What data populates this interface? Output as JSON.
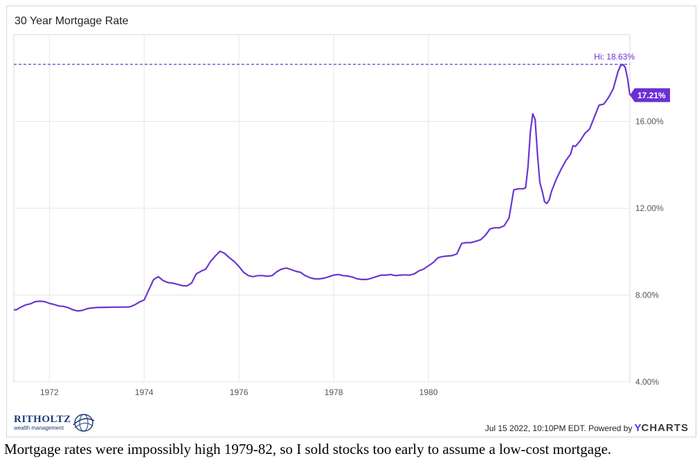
{
  "chart_title": "30 Year Mortgage Rate",
  "footer": {
    "timestamp": "Jul 15 2022, 10:10PM EDT. Powered by",
    "brand_y": "Y",
    "brand_rest": "CHARTS"
  },
  "logo": {
    "name": "RITHOLTZ",
    "sub": "wealth management"
  },
  "caption": "Mortgage rates were impossibly high 1979-82, so I sold stocks too early to assume a low-cost mortgage.",
  "colors": {
    "line": "#6a35cf",
    "accent": "#6b2fd6",
    "grid": "#e6e6e6"
  },
  "chart_data": {
    "type": "line",
    "title": "30 Year Mortgage Rate",
    "series": [
      {
        "name": "30 Year Mortgage Rate",
        "points": [
          [
            1971.25,
            7.33
          ],
          [
            1971.3,
            7.32
          ],
          [
            1971.4,
            7.45
          ],
          [
            1971.5,
            7.55
          ],
          [
            1971.6,
            7.6
          ],
          [
            1971.7,
            7.7
          ],
          [
            1971.8,
            7.72
          ],
          [
            1971.9,
            7.7
          ],
          [
            1972.0,
            7.62
          ],
          [
            1972.1,
            7.57
          ],
          [
            1972.2,
            7.5
          ],
          [
            1972.3,
            7.48
          ],
          [
            1972.4,
            7.42
          ],
          [
            1972.5,
            7.32
          ],
          [
            1972.6,
            7.27
          ],
          [
            1972.7,
            7.3
          ],
          [
            1972.8,
            7.38
          ],
          [
            1972.9,
            7.41
          ],
          [
            1973.0,
            7.43
          ],
          [
            1973.2,
            7.44
          ],
          [
            1973.4,
            7.45
          ],
          [
            1973.6,
            7.45
          ],
          [
            1973.7,
            7.46
          ],
          [
            1973.8,
            7.55
          ],
          [
            1973.9,
            7.68
          ],
          [
            1974.0,
            7.78
          ],
          [
            1974.1,
            8.25
          ],
          [
            1974.2,
            8.72
          ],
          [
            1974.3,
            8.85
          ],
          [
            1974.4,
            8.67
          ],
          [
            1974.5,
            8.58
          ],
          [
            1974.6,
            8.55
          ],
          [
            1974.7,
            8.5
          ],
          [
            1974.8,
            8.44
          ],
          [
            1974.9,
            8.42
          ],
          [
            1975.0,
            8.55
          ],
          [
            1975.1,
            8.98
          ],
          [
            1975.2,
            9.1
          ],
          [
            1975.3,
            9.2
          ],
          [
            1975.4,
            9.55
          ],
          [
            1975.5,
            9.8
          ],
          [
            1975.6,
            10.02
          ],
          [
            1975.7,
            9.92
          ],
          [
            1975.8,
            9.72
          ],
          [
            1975.9,
            9.55
          ],
          [
            1976.0,
            9.32
          ],
          [
            1976.1,
            9.05
          ],
          [
            1976.2,
            8.9
          ],
          [
            1976.3,
            8.85
          ],
          [
            1976.4,
            8.9
          ],
          [
            1976.5,
            8.9
          ],
          [
            1976.6,
            8.87
          ],
          [
            1976.7,
            8.9
          ],
          [
            1976.8,
            9.08
          ],
          [
            1976.9,
            9.2
          ],
          [
            1977.0,
            9.25
          ],
          [
            1977.1,
            9.18
          ],
          [
            1977.2,
            9.1
          ],
          [
            1977.3,
            9.05
          ],
          [
            1977.4,
            8.9
          ],
          [
            1977.5,
            8.8
          ],
          [
            1977.6,
            8.75
          ],
          [
            1977.7,
            8.75
          ],
          [
            1977.8,
            8.78
          ],
          [
            1977.9,
            8.85
          ],
          [
            1978.0,
            8.92
          ],
          [
            1978.1,
            8.95
          ],
          [
            1978.2,
            8.9
          ],
          [
            1978.3,
            8.88
          ],
          [
            1978.4,
            8.83
          ],
          [
            1978.5,
            8.75
          ],
          [
            1978.6,
            8.72
          ],
          [
            1978.7,
            8.72
          ],
          [
            1978.8,
            8.78
          ],
          [
            1978.9,
            8.85
          ],
          [
            1979.0,
            8.92
          ],
          [
            1979.1,
            8.92
          ],
          [
            1979.2,
            8.95
          ],
          [
            1979.3,
            8.9
          ],
          [
            1979.4,
            8.92
          ],
          [
            1979.5,
            8.93
          ],
          [
            1979.6,
            8.92
          ],
          [
            1979.7,
            8.98
          ],
          [
            1979.8,
            9.12
          ],
          [
            1979.9,
            9.2
          ],
          [
            1980.0,
            9.35
          ],
          [
            1980.1,
            9.5
          ],
          [
            1980.2,
            9.72
          ],
          [
            1980.3,
            9.78
          ],
          [
            1980.4,
            9.8
          ],
          [
            1980.5,
            9.82
          ],
          [
            1980.6,
            9.9
          ],
          [
            1980.7,
            10.38
          ],
          [
            1980.8,
            10.42
          ],
          [
            1980.9,
            10.42
          ],
          [
            1981.0,
            10.48
          ],
          [
            1981.1,
            10.55
          ],
          [
            1981.2,
            10.75
          ],
          [
            1981.3,
            11.05
          ],
          [
            1981.4,
            11.1
          ],
          [
            1981.5,
            11.1
          ],
          [
            1981.6,
            11.2
          ],
          [
            1981.7,
            11.55
          ],
          [
            1981.8,
            12.85
          ],
          [
            1981.9,
            12.9
          ],
          [
            1982.0,
            12.9
          ],
          [
            1982.05,
            12.95
          ],
          [
            1982.1,
            13.9
          ],
          [
            1982.15,
            15.5
          ],
          [
            1982.2,
            16.35
          ],
          [
            1982.25,
            16.1
          ],
          [
            1982.3,
            14.5
          ],
          [
            1982.35,
            13.2
          ],
          [
            1982.4,
            12.8
          ],
          [
            1982.45,
            12.3
          ],
          [
            1982.5,
            12.22
          ],
          [
            1982.55,
            12.4
          ],
          [
            1982.6,
            12.8
          ],
          [
            1982.7,
            13.35
          ],
          [
            1982.8,
            13.8
          ],
          [
            1982.9,
            14.2
          ],
          [
            1983.0,
            14.5
          ],
          [
            1983.05,
            14.88
          ],
          [
            1983.1,
            14.85
          ],
          [
            1983.2,
            15.1
          ],
          [
            1983.3,
            15.45
          ],
          [
            1983.4,
            15.65
          ],
          [
            1983.5,
            16.2
          ],
          [
            1983.6,
            16.75
          ],
          [
            1983.7,
            16.8
          ],
          [
            1983.8,
            17.1
          ],
          [
            1983.9,
            17.5
          ],
          [
            1984.0,
            18.3
          ],
          [
            1984.05,
            18.55
          ],
          [
            1984.1,
            18.63
          ],
          [
            1984.15,
            18.5
          ],
          [
            1984.2,
            18.0
          ],
          [
            1984.25,
            17.21
          ]
        ]
      }
    ],
    "x": {
      "min": 1971.25,
      "max": 1984.25,
      "ticks": [
        1972,
        1974,
        1976,
        1978,
        1980
      ],
      "tick_labels": [
        "1972",
        "1974",
        "1976",
        "1978",
        "1980"
      ]
    },
    "y": {
      "min": 4.0,
      "max": 20.0,
      "ticks": [
        4,
        8,
        12,
        16
      ],
      "tick_labels": [
        "4.00%",
        "8.00%",
        "12.00%",
        "16.00%"
      ]
    },
    "high_line": {
      "value": 18.63,
      "label": "Hi: 18.63%"
    },
    "last_value": {
      "value": 17.21,
      "label": "17.21%"
    },
    "grid": true
  }
}
